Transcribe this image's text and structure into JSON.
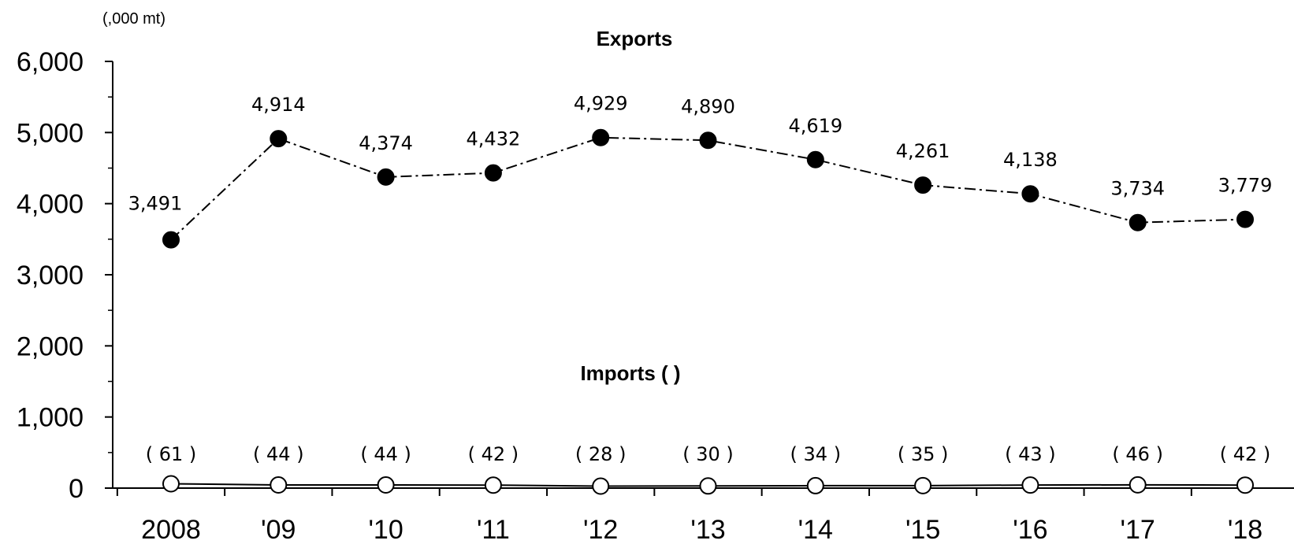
{
  "chart_data": {
    "type": "line",
    "unit_label": "(,000 mt)",
    "categories": [
      "2008",
      "'09",
      "'10",
      "'11",
      "'12",
      "'13",
      "'14",
      "'15",
      "'16",
      "'17",
      "'18"
    ],
    "ylim": [
      0,
      6000
    ],
    "yticks": [
      0,
      1000,
      2000,
      3000,
      4000,
      5000,
      6000
    ],
    "ytick_labels": [
      "0",
      "1,000",
      "2,000",
      "3,000",
      "4,000",
      "5,000",
      "6,000"
    ],
    "grid": false,
    "series": [
      {
        "name": "Exports",
        "values": [
          3491,
          4914,
          4374,
          4432,
          4929,
          4890,
          4619,
          4261,
          4138,
          3734,
          3779
        ],
        "labels": [
          "3,491",
          "4,914",
          "4,374",
          "4,432",
          "4,929",
          "4,890",
          "4,619",
          "4,261",
          "4,138",
          "3,734",
          "3,779"
        ],
        "marker": "filled-circle",
        "line_style": "dash-dot",
        "color": "#000000"
      },
      {
        "name": "Imports ( )",
        "values": [
          61,
          44,
          44,
          42,
          28,
          30,
          34,
          35,
          43,
          46,
          42
        ],
        "labels": [
          "( 61 )",
          "( 44 )",
          "( 44 )",
          "( 42 )",
          "( 28 )",
          "( 30 )",
          "( 34 )",
          "( 35 )",
          "( 43 )",
          "( 46 )",
          "( 42 )"
        ],
        "marker": "open-circle",
        "line_style": "solid",
        "color": "#000000"
      }
    ]
  }
}
